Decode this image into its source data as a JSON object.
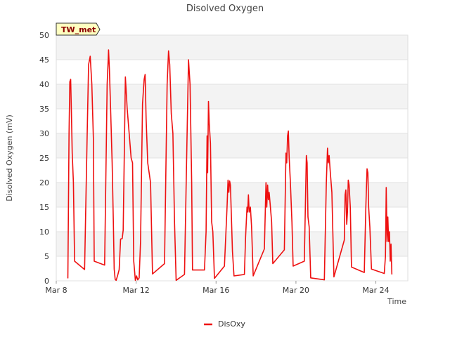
{
  "chart_data": {
    "type": "line",
    "title": "Disolved Oxygen",
    "xlabel": "Time",
    "ylabel": "Disolved Oxygen (mV)",
    "station_label": "TW_met",
    "ylim": [
      0,
      50
    ],
    "y_ticks": [
      0,
      5,
      10,
      15,
      20,
      25,
      30,
      35,
      40,
      45,
      50
    ],
    "xlim": [
      "Mar 8",
      "Mar 25.6"
    ],
    "x_ticks": [
      {
        "label": "Mar 8",
        "value": 8
      },
      {
        "label": "Mar 12",
        "value": 12
      },
      {
        "label": "Mar 16",
        "value": 16
      },
      {
        "label": "Mar 20",
        "value": 20
      },
      {
        "label": "Mar 24",
        "value": 24
      }
    ],
    "grid": "horizontal alternating bands",
    "legend_position": "bottom-center",
    "series": [
      {
        "name": "DisOxy",
        "color": "#ee1111",
        "points": [
          [
            8.58,
            0.5
          ],
          [
            8.64,
            30
          ],
          [
            8.68,
            40.5
          ],
          [
            8.72,
            41
          ],
          [
            8.76,
            34
          ],
          [
            8.8,
            26
          ],
          [
            8.86,
            20
          ],
          [
            8.92,
            4
          ],
          [
            9.42,
            2.3
          ],
          [
            9.55,
            30
          ],
          [
            9.62,
            44
          ],
          [
            9.7,
            45.7
          ],
          [
            9.78,
            40
          ],
          [
            9.86,
            29
          ],
          [
            9.9,
            4
          ],
          [
            10.42,
            3.2
          ],
          [
            10.55,
            40
          ],
          [
            10.62,
            47
          ],
          [
            10.66,
            43
          ],
          [
            10.72,
            35
          ],
          [
            10.8,
            24
          ],
          [
            10.86,
            12
          ],
          [
            10.9,
            2.4
          ],
          [
            10.95,
            0.3
          ],
          [
            11.0,
            0.1
          ],
          [
            11.08,
            1.2
          ],
          [
            11.15,
            2.3
          ],
          [
            11.22,
            8.5
          ],
          [
            11.3,
            8.6
          ],
          [
            11.35,
            10.3
          ],
          [
            11.42,
            30
          ],
          [
            11.46,
            41.5
          ],
          [
            11.55,
            35
          ],
          [
            11.65,
            30
          ],
          [
            11.75,
            25
          ],
          [
            11.82,
            24
          ],
          [
            11.88,
            4
          ],
          [
            11.92,
            2
          ],
          [
            11.96,
            0.1
          ],
          [
            12.02,
            1
          ],
          [
            12.08,
            0.2
          ],
          [
            12.15,
            0.6
          ],
          [
            12.22,
            8
          ],
          [
            12.32,
            36
          ],
          [
            12.4,
            41
          ],
          [
            12.45,
            42
          ],
          [
            12.5,
            33
          ],
          [
            12.58,
            24
          ],
          [
            12.65,
            22
          ],
          [
            12.72,
            20
          ],
          [
            12.82,
            1.4
          ],
          [
            13.42,
            3.5
          ],
          [
            13.55,
            40
          ],
          [
            13.62,
            46.8
          ],
          [
            13.68,
            44
          ],
          [
            13.76,
            34
          ],
          [
            13.84,
            30
          ],
          [
            13.92,
            12
          ],
          [
            14.0,
            0.1
          ],
          [
            14.42,
            1.3
          ],
          [
            14.55,
            30
          ],
          [
            14.62,
            45
          ],
          [
            14.7,
            40
          ],
          [
            14.78,
            20
          ],
          [
            14.82,
            2.2
          ],
          [
            15.42,
            2.2
          ],
          [
            15.5,
            10
          ],
          [
            15.55,
            29.5
          ],
          [
            15.58,
            22
          ],
          [
            15.62,
            36.5
          ],
          [
            15.66,
            32
          ],
          [
            15.72,
            28
          ],
          [
            15.78,
            12
          ],
          [
            15.84,
            10
          ],
          [
            15.92,
            0.5
          ],
          [
            16.42,
            3
          ],
          [
            16.55,
            15
          ],
          [
            16.6,
            20.5
          ],
          [
            16.64,
            18
          ],
          [
            16.68,
            20.3
          ],
          [
            16.72,
            19.5
          ],
          [
            16.76,
            14
          ],
          [
            16.82,
            6
          ],
          [
            16.9,
            1
          ],
          [
            17.42,
            1.3
          ],
          [
            17.48,
            9
          ],
          [
            17.55,
            15
          ],
          [
            17.58,
            14
          ],
          [
            17.62,
            17.5
          ],
          [
            17.66,
            14
          ],
          [
            17.72,
            15
          ],
          [
            17.78,
            11
          ],
          [
            17.86,
            1
          ],
          [
            18.42,
            6.5
          ],
          [
            18.5,
            20
          ],
          [
            18.54,
            15
          ],
          [
            18.58,
            19.5
          ],
          [
            18.62,
            16.5
          ],
          [
            18.66,
            18
          ],
          [
            18.7,
            16
          ],
          [
            18.78,
            12
          ],
          [
            18.84,
            3.5
          ],
          [
            19.42,
            6.3
          ],
          [
            19.5,
            26
          ],
          [
            19.54,
            24
          ],
          [
            19.58,
            29.5
          ],
          [
            19.62,
            30.5
          ],
          [
            19.66,
            25
          ],
          [
            19.72,
            20
          ],
          [
            19.8,
            12
          ],
          [
            19.86,
            3
          ],
          [
            20.42,
            4
          ],
          [
            20.52,
            25.5
          ],
          [
            20.56,
            24
          ],
          [
            20.6,
            13
          ],
          [
            20.66,
            11
          ],
          [
            20.74,
            0.6
          ],
          [
            21.42,
            0.2
          ],
          [
            21.52,
            20
          ],
          [
            21.58,
            27
          ],
          [
            21.62,
            24
          ],
          [
            21.66,
            25.5
          ],
          [
            21.72,
            22
          ],
          [
            21.8,
            18
          ],
          [
            21.9,
            0.8
          ],
          [
            22.42,
            8.3
          ],
          [
            22.46,
            17.5
          ],
          [
            22.5,
            18.5
          ],
          [
            22.54,
            11.5
          ],
          [
            22.58,
            14
          ],
          [
            22.62,
            20.5
          ],
          [
            22.66,
            19.5
          ],
          [
            22.72,
            15
          ],
          [
            22.78,
            2.8
          ],
          [
            23.42,
            1.7
          ],
          [
            23.5,
            15
          ],
          [
            23.56,
            22.8
          ],
          [
            23.6,
            22
          ],
          [
            23.64,
            15
          ],
          [
            23.7,
            11
          ],
          [
            23.78,
            2.4
          ],
          [
            24.42,
            1.5
          ],
          [
            24.48,
            5
          ],
          [
            24.52,
            19
          ],
          [
            24.56,
            8
          ],
          [
            24.6,
            13
          ],
          [
            24.64,
            8
          ],
          [
            24.68,
            10
          ],
          [
            24.72,
            4
          ],
          [
            24.76,
            7.5
          ],
          [
            24.8,
            1.3
          ]
        ]
      }
    ]
  }
}
